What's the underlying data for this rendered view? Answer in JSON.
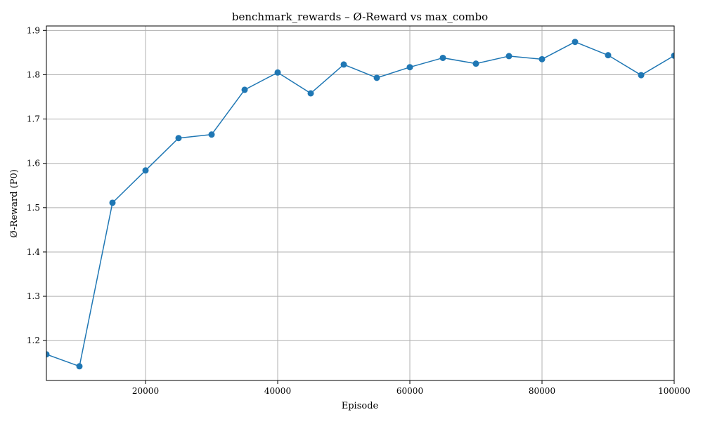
{
  "chart_data": {
    "type": "line",
    "title": "benchmark_rewards – Ø-Reward vs max_combo",
    "xlabel": "Episode",
    "ylabel": "Ø-Reward (P0)",
    "xlim": [
      5000,
      100000
    ],
    "ylim": [
      1.11,
      1.91
    ],
    "xticks": [
      20000,
      40000,
      60000,
      80000,
      100000
    ],
    "xtick_labels": [
      "20000",
      "40000",
      "60000",
      "80000",
      "100000"
    ],
    "yticks": [
      1.2,
      1.3,
      1.4,
      1.5,
      1.6,
      1.7,
      1.8,
      1.9
    ],
    "ytick_labels": [
      "1.2",
      "1.3",
      "1.4",
      "1.5",
      "1.6",
      "1.7",
      "1.8",
      "1.9"
    ],
    "grid": true,
    "series": [
      {
        "color": "#1f77b4",
        "marker": "circle",
        "x": [
          5000,
          10000,
          15000,
          20000,
          25000,
          30000,
          35000,
          40000,
          45000,
          50000,
          55000,
          60000,
          65000,
          70000,
          75000,
          80000,
          85000,
          90000,
          95000,
          100000
        ],
        "y": [
          1.169,
          1.142,
          1.511,
          1.584,
          1.657,
          1.665,
          1.766,
          1.805,
          1.758,
          1.823,
          1.793,
          1.817,
          1.838,
          1.825,
          1.842,
          1.835,
          1.874,
          1.844,
          1.799,
          1.843
        ]
      }
    ]
  }
}
